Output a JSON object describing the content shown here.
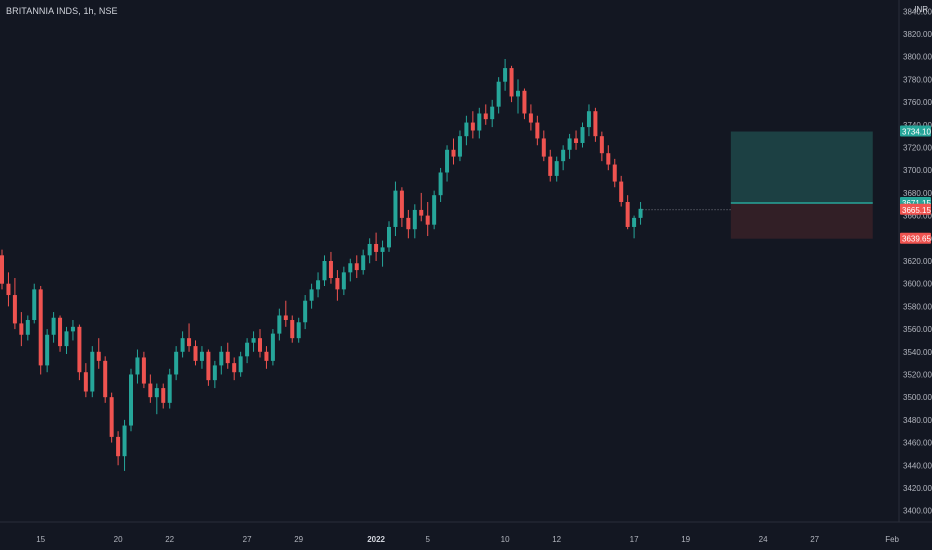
{
  "header": {
    "symbol_line": "BRITANNIA INDS, 1h, NSE",
    "currency": "INR"
  },
  "colors": {
    "background": "#131722",
    "up": "#26a69a",
    "down": "#ef5350",
    "axis_text": "#b2b5be",
    "profit_zone": "#1f4b4c",
    "loss_zone": "#3b2228",
    "entry_line": "#26a69a"
  },
  "chart_data": {
    "type": "candlestick",
    "ylim": [
      3390,
      3850
    ],
    "y_ticks": [
      3400,
      3420,
      3440,
      3460,
      3480,
      3500,
      3520,
      3540,
      3560,
      3580,
      3600,
      3620,
      3640,
      3660,
      3680,
      3700,
      3720,
      3740,
      3760,
      3780,
      3800,
      3820,
      3840
    ],
    "y_tick_labels": [
      "3400.00",
      "3420.00",
      "3440.00",
      "3460.00",
      "3480.00",
      "3500.00",
      "3520.00",
      "3540.00",
      "3560.00",
      "3580.00",
      "3600.00",
      "3620.00",
      "3640.00",
      "3660.00",
      "3680.00",
      "3700.00",
      "3720.00",
      "3740.00",
      "3760.00",
      "3780.00",
      "3800.00",
      "3820.00",
      "3840.00"
    ],
    "x_ticks": [
      {
        "label": "15",
        "index": 6,
        "bold": false
      },
      {
        "label": "20",
        "index": 18,
        "bold": false
      },
      {
        "label": "22",
        "index": 26,
        "bold": false
      },
      {
        "label": "27",
        "index": 38,
        "bold": false
      },
      {
        "label": "29",
        "index": 46,
        "bold": false
      },
      {
        "label": "2022",
        "index": 58,
        "bold": true
      },
      {
        "label": "5",
        "index": 66,
        "bold": false
      },
      {
        "label": "10",
        "index": 78,
        "bold": false
      },
      {
        "label": "12",
        "index": 86,
        "bold": false
      },
      {
        "label": "17",
        "index": 98,
        "bold": false
      },
      {
        "label": "19",
        "index": 106,
        "bold": false
      },
      {
        "label": "24",
        "index": 118,
        "bold": false
      },
      {
        "label": "27",
        "index": 126,
        "bold": false
      },
      {
        "label": "Feb",
        "index": 138,
        "bold": false
      }
    ],
    "candles": [
      [
        3625,
        3630,
        3595,
        3600
      ],
      [
        3600,
        3610,
        3580,
        3590
      ],
      [
        3590,
        3605,
        3560,
        3565
      ],
      [
        3565,
        3575,
        3545,
        3555
      ],
      [
        3555,
        3572,
        3550,
        3568
      ],
      [
        3568,
        3600,
        3565,
        3595
      ],
      [
        3595,
        3598,
        3520,
        3528
      ],
      [
        3528,
        3560,
        3522,
        3555
      ],
      [
        3555,
        3575,
        3548,
        3570
      ],
      [
        3570,
        3572,
        3540,
        3545
      ],
      [
        3545,
        3562,
        3538,
        3558
      ],
      [
        3558,
        3568,
        3550,
        3562
      ],
      [
        3562,
        3564,
        3515,
        3522
      ],
      [
        3522,
        3530,
        3500,
        3505
      ],
      [
        3505,
        3545,
        3500,
        3540
      ],
      [
        3540,
        3552,
        3525,
        3532
      ],
      [
        3532,
        3536,
        3495,
        3500
      ],
      [
        3500,
        3504,
        3460,
        3465
      ],
      [
        3465,
        3470,
        3440,
        3448
      ],
      [
        3448,
        3480,
        3435,
        3475
      ],
      [
        3475,
        3525,
        3470,
        3520
      ],
      [
        3520,
        3542,
        3512,
        3535
      ],
      [
        3535,
        3540,
        3508,
        3512
      ],
      [
        3512,
        3520,
        3495,
        3500
      ],
      [
        3500,
        3512,
        3485,
        3508
      ],
      [
        3508,
        3512,
        3490,
        3495
      ],
      [
        3495,
        3525,
        3490,
        3520
      ],
      [
        3520,
        3545,
        3515,
        3540
      ],
      [
        3540,
        3558,
        3535,
        3552
      ],
      [
        3552,
        3565,
        3540,
        3545
      ],
      [
        3545,
        3550,
        3528,
        3532
      ],
      [
        3532,
        3545,
        3525,
        3540
      ],
      [
        3540,
        3542,
        3510,
        3515
      ],
      [
        3515,
        3532,
        3508,
        3528
      ],
      [
        3528,
        3545,
        3520,
        3540
      ],
      [
        3540,
        3548,
        3525,
        3530
      ],
      [
        3530,
        3535,
        3515,
        3522
      ],
      [
        3522,
        3540,
        3518,
        3536
      ],
      [
        3536,
        3552,
        3530,
        3548
      ],
      [
        3548,
        3558,
        3540,
        3552
      ],
      [
        3552,
        3560,
        3535,
        3540
      ],
      [
        3540,
        3545,
        3525,
        3532
      ],
      [
        3532,
        3560,
        3528,
        3556
      ],
      [
        3556,
        3578,
        3550,
        3572
      ],
      [
        3572,
        3585,
        3562,
        3568
      ],
      [
        3568,
        3572,
        3548,
        3552
      ],
      [
        3552,
        3570,
        3548,
        3566
      ],
      [
        3566,
        3590,
        3560,
        3585
      ],
      [
        3585,
        3600,
        3578,
        3595
      ],
      [
        3595,
        3610,
        3588,
        3603
      ],
      [
        3603,
        3625,
        3598,
        3620
      ],
      [
        3620,
        3628,
        3600,
        3605
      ],
      [
        3605,
        3612,
        3585,
        3595
      ],
      [
        3595,
        3615,
        3590,
        3610
      ],
      [
        3610,
        3622,
        3602,
        3618
      ],
      [
        3618,
        3625,
        3605,
        3612
      ],
      [
        3612,
        3630,
        3608,
        3625
      ],
      [
        3625,
        3640,
        3618,
        3635
      ],
      [
        3635,
        3645,
        3620,
        3628
      ],
      [
        3628,
        3638,
        3615,
        3632
      ],
      [
        3632,
        3655,
        3628,
        3650
      ],
      [
        3650,
        3690,
        3642,
        3682
      ],
      [
        3682,
        3685,
        3650,
        3658
      ],
      [
        3658,
        3665,
        3640,
        3648
      ],
      [
        3648,
        3670,
        3640,
        3665
      ],
      [
        3665,
        3680,
        3655,
        3660
      ],
      [
        3660,
        3672,
        3642,
        3652
      ],
      [
        3652,
        3682,
        3648,
        3678
      ],
      [
        3678,
        3702,
        3672,
        3698
      ],
      [
        3698,
        3722,
        3690,
        3718
      ],
      [
        3718,
        3728,
        3705,
        3712
      ],
      [
        3712,
        3735,
        3708,
        3730
      ],
      [
        3730,
        3748,
        3722,
        3742
      ],
      [
        3742,
        3752,
        3728,
        3735
      ],
      [
        3735,
        3755,
        3728,
        3750
      ],
      [
        3750,
        3758,
        3740,
        3745
      ],
      [
        3745,
        3762,
        3738,
        3756
      ],
      [
        3756,
        3782,
        3750,
        3778
      ],
      [
        3778,
        3798,
        3770,
        3790
      ],
      [
        3790,
        3792,
        3760,
        3765
      ],
      [
        3765,
        3780,
        3750,
        3770
      ],
      [
        3770,
        3772,
        3745,
        3750
      ],
      [
        3750,
        3758,
        3735,
        3742
      ],
      [
        3742,
        3748,
        3722,
        3728
      ],
      [
        3728,
        3735,
        3708,
        3712
      ],
      [
        3712,
        3718,
        3690,
        3695
      ],
      [
        3695,
        3712,
        3690,
        3708
      ],
      [
        3708,
        3722,
        3700,
        3718
      ],
      [
        3718,
        3732,
        3710,
        3728
      ],
      [
        3728,
        3735,
        3718,
        3724
      ],
      [
        3724,
        3742,
        3720,
        3738
      ],
      [
        3738,
        3758,
        3730,
        3752
      ],
      [
        3752,
        3755,
        3725,
        3730
      ],
      [
        3730,
        3734,
        3708,
        3715
      ],
      [
        3715,
        3722,
        3700,
        3705
      ],
      [
        3705,
        3710,
        3685,
        3690
      ],
      [
        3690,
        3695,
        3668,
        3672
      ],
      [
        3672,
        3678,
        3648,
        3650
      ],
      [
        3650,
        3660,
        3640,
        3658
      ],
      [
        3658,
        3672,
        3652,
        3666
      ]
    ],
    "position": {
      "profit_target": 3734.1,
      "entry": 3671.15,
      "current": 3665.15,
      "stop_loss": 3639.65,
      "start_index": 113,
      "end_index": 135
    },
    "price_tags": [
      {
        "label": "3734.10",
        "value": 3734.1,
        "color": "#26a69a"
      },
      {
        "label": "3671.15",
        "value": 3671.15,
        "color": "#26a69a"
      },
      {
        "label": "3665.15",
        "value": 3665.15,
        "color": "#ef5350"
      },
      {
        "label": "3639.65",
        "value": 3639.65,
        "color": "#ef5350"
      }
    ]
  }
}
